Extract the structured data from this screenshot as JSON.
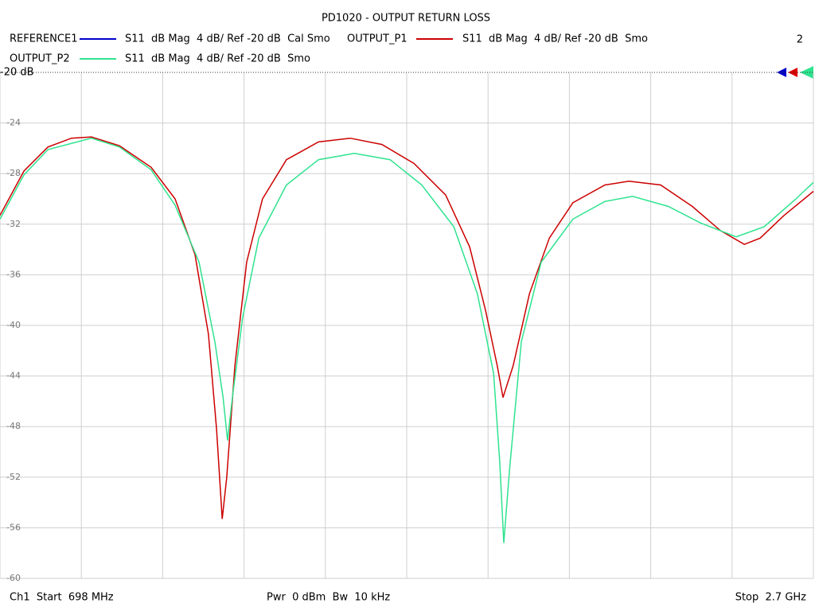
{
  "chart_data": {
    "type": "line",
    "title": "PD1020 - OUTPUT RETURN LOSS",
    "channel_window": "2",
    "xlim": [
      698,
      2700
    ],
    "xticks": [
      698,
      898.2,
      1098.4,
      1298.6,
      1498.8,
      1699,
      1899.2,
      2099.4,
      2299.6,
      2499.8,
      2700
    ],
    "ylim": [
      -60,
      -20
    ],
    "yticks": [
      {
        "value": -20,
        "label": "-20 dB"
      },
      -24,
      -28,
      -32,
      -36,
      -40,
      -44,
      -48,
      -52,
      -56,
      -60
    ],
    "grid": true,
    "series": [
      {
        "name": "REFERENCE1",
        "trace_info": "S11  dB Mag  4 dB/ Ref -20 dB  Cal Smo",
        "color": "#0000cc",
        "x": [],
        "values": []
      },
      {
        "name": "OUTPUT_P1",
        "trace_info": "S11  dB Mag  4 dB/ Ref -20 dB  Smo",
        "color": "#cc0000",
        "x": [
          698,
          757,
          816,
          874,
          923,
          992,
          1070,
          1129,
          1178,
          1211,
          1231,
          1245,
          1256,
          1276,
          1305,
          1344,
          1403,
          1482,
          1560,
          1638,
          1717,
          1795,
          1854,
          1893,
          1922,
          1936,
          1961,
          2001,
          2050,
          2108,
          2187,
          2246,
          2324,
          2402,
          2471,
          2530,
          2569,
          2628,
          2700
        ],
        "values": [
          -31.3,
          -27.8,
          -25.9,
          -25.2,
          -25.1,
          -25.8,
          -27.5,
          -30.0,
          -34.4,
          -40.7,
          -48.2,
          -55.3,
          -52.0,
          -43.2,
          -35.0,
          -30.0,
          -26.9,
          -25.5,
          -25.2,
          -25.7,
          -27.2,
          -29.7,
          -33.8,
          -38.8,
          -43.2,
          -45.7,
          -43.2,
          -37.5,
          -33.1,
          -30.3,
          -28.9,
          -28.6,
          -28.9,
          -30.6,
          -32.5,
          -33.6,
          -33.1,
          -31.3,
          -29.4
        ]
      },
      {
        "name": "OUTPUT_P2",
        "trace_info": "S11  dB Mag  4 dB/ Ref -20 dB  Smo",
        "color": "#2ee38f",
        "x": [
          698,
          757,
          816,
          923,
          992,
          1070,
          1129,
          1188,
          1227,
          1247,
          1258,
          1270,
          1295,
          1335,
          1403,
          1482,
          1570,
          1658,
          1736,
          1815,
          1873,
          1913,
          1928,
          1938,
          1952,
          1981,
          2030,
          2108,
          2187,
          2255,
          2343,
          2422,
          2510,
          2579,
          2657,
          2700
        ],
        "values": [
          -31.6,
          -28.1,
          -26.1,
          -25.2,
          -25.9,
          -27.7,
          -30.5,
          -35.0,
          -41.3,
          -45.7,
          -49.1,
          -45.7,
          -39.4,
          -33.1,
          -28.9,
          -26.9,
          -26.4,
          -26.9,
          -28.9,
          -32.2,
          -37.5,
          -43.8,
          -50.8,
          -57.2,
          -51.4,
          -41.3,
          -35.0,
          -31.6,
          -30.2,
          -29.8,
          -30.6,
          -31.9,
          -33.0,
          -32.2,
          -30.0,
          -28.7
        ]
      }
    ],
    "footer": {
      "start": "Ch1  Start  698 MHz",
      "settings": "Pwr  0 dBm  Bw  10 kHz",
      "stop": "Stop  2.7 GHz"
    }
  }
}
